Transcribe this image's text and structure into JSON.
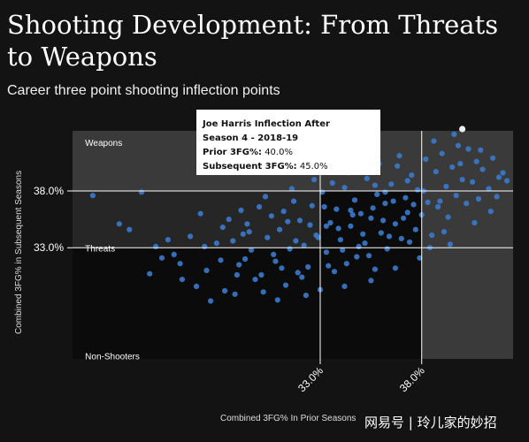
{
  "title": "Shooting Development: From Threats to Weapons",
  "subtitle": "Career three point shooting inflection points",
  "watermark": "网易号 | 玲儿家的妙招",
  "colors": {
    "background": "#131313",
    "point": "#3a78c9",
    "highlight": "#e8eef8",
    "zone_top": "#3a3a3a",
    "zone_mid": "#262626",
    "zone_inner": "#0b0b0b"
  },
  "chart_data": {
    "type": "scatter",
    "xlabel": "Combined 3FG% In Prior Seasons",
    "ylabel": "Combined 3FG% in Subsequent Seasons",
    "xlim": [
      20.8,
      42.5
    ],
    "ylim": [
      23.2,
      43.3
    ],
    "x_ticks": [
      {
        "value": 33.0,
        "label": "33.0%"
      },
      {
        "value": 38.0,
        "label": "38.0%"
      }
    ],
    "y_ticks": [
      {
        "value": 38.0,
        "label": "38.0%"
      },
      {
        "value": 33.0,
        "label": "33.0%"
      }
    ],
    "zones": [
      {
        "label": "Weapons",
        "x": 21.2,
        "y": 42.6
      },
      {
        "label": "Threats",
        "x": 21.2,
        "y": 33.3
      },
      {
        "label": "Non-Shooters",
        "x": 21.2,
        "y": 23.8
      }
    ],
    "tooltip": {
      "title_line1": "Joe Harris Inflection After",
      "title_line2": "Season 4 - 2018-19",
      "prior_label": "Prior 3FG%:",
      "prior_value": "40.0%",
      "subsequent_label": "Subsequent 3FG%:",
      "subsequent_value": "45.0%"
    },
    "highlight_point": {
      "x": 40.0,
      "y": 45.0
    },
    "points": [
      [
        21.8,
        37.6
      ],
      [
        23.1,
        35.1
      ],
      [
        23.6,
        34.6
      ],
      [
        24.2,
        37.9
      ],
      [
        24.6,
        30.7
      ],
      [
        25.2,
        32.1
      ],
      [
        25.5,
        33.7
      ],
      [
        25.8,
        32.4
      ],
      [
        26.2,
        30.2
      ],
      [
        26.9,
        29.6
      ],
      [
        27.3,
        33.1
      ],
      [
        27.6,
        28.3
      ],
      [
        27.9,
        33.4
      ],
      [
        28.1,
        31.9
      ],
      [
        28.3,
        29.2
      ],
      [
        28.5,
        35.5
      ],
      [
        28.7,
        33.6
      ],
      [
        28.9,
        30.6
      ],
      [
        29.0,
        31.5
      ],
      [
        29.2,
        34.2
      ],
      [
        29.4,
        35.1
      ],
      [
        29.6,
        32.8
      ],
      [
        29.8,
        30.2
      ],
      [
        30.0,
        36.6
      ],
      [
        30.2,
        29.1
      ],
      [
        30.4,
        33.9
      ],
      [
        30.6,
        35.8
      ],
      [
        30.8,
        31.8
      ],
      [
        31.0,
        34.6
      ],
      [
        31.2,
        36.2
      ],
      [
        31.3,
        29.7
      ],
      [
        31.5,
        32.9
      ],
      [
        31.7,
        37.1
      ],
      [
        31.9,
        30.8
      ],
      [
        32.0,
        35.4
      ],
      [
        32.2,
        33.2
      ],
      [
        32.4,
        31.3
      ],
      [
        32.6,
        36.7
      ],
      [
        32.8,
        34.1
      ],
      [
        33.0,
        29.3
      ],
      [
        33.1,
        37.9
      ],
      [
        33.3,
        32.6
      ],
      [
        33.5,
        35.2
      ],
      [
        33.7,
        30.9
      ],
      [
        33.8,
        36.4
      ],
      [
        34.0,
        33.7
      ],
      [
        34.2,
        38.3
      ],
      [
        34.3,
        31.6
      ],
      [
        34.5,
        34.9
      ],
      [
        34.7,
        37.2
      ],
      [
        34.8,
        32.2
      ],
      [
        35.0,
        36.0
      ],
      [
        35.2,
        33.4
      ],
      [
        35.3,
        39.1
      ],
      [
        35.5,
        35.6
      ],
      [
        35.7,
        31.1
      ],
      [
        35.8,
        37.7
      ],
      [
        36.0,
        34.3
      ],
      [
        36.2,
        36.9
      ],
      [
        36.3,
        32.9
      ],
      [
        36.5,
        38.6
      ],
      [
        36.7,
        35.1
      ],
      [
        36.8,
        40.2
      ],
      [
        37.0,
        33.8
      ],
      [
        37.2,
        37.4
      ],
      [
        37.3,
        36.1
      ],
      [
        37.5,
        39.4
      ],
      [
        37.7,
        34.6
      ],
      [
        37.8,
        38.1
      ],
      [
        38.0,
        35.9
      ],
      [
        38.2,
        40.8
      ],
      [
        38.3,
        37.0
      ],
      [
        38.5,
        34.1
      ],
      [
        38.7,
        39.7
      ],
      [
        38.8,
        36.6
      ],
      [
        39.0,
        41.3
      ],
      [
        39.2,
        38.4
      ],
      [
        39.3,
        35.7
      ],
      [
        39.5,
        40.1
      ],
      [
        39.7,
        37.6
      ],
      [
        39.8,
        42.0
      ],
      [
        40.0,
        39.0
      ],
      [
        40.2,
        36.9
      ],
      [
        40.3,
        41.7
      ],
      [
        40.5,
        38.8
      ],
      [
        40.7,
        40.6
      ],
      [
        40.8,
        37.3
      ],
      [
        41.0,
        39.9
      ],
      [
        41.3,
        38.2
      ],
      [
        41.5,
        40.9
      ],
      [
        41.7,
        37.5
      ],
      [
        42.0,
        39.6
      ],
      [
        42.2,
        38.9
      ],
      [
        29.5,
        34.4
      ],
      [
        30.7,
        32.4
      ],
      [
        31.8,
        33.6
      ],
      [
        32.5,
        35.0
      ],
      [
        33.2,
        36.6
      ],
      [
        33.9,
        34.7
      ],
      [
        34.6,
        35.9
      ],
      [
        35.1,
        34.2
      ],
      [
        35.6,
        36.5
      ],
      [
        36.1,
        35.4
      ],
      [
        36.6,
        37.1
      ],
      [
        37.1,
        35.6
      ],
      [
        37.6,
        36.8
      ],
      [
        31.1,
        31.2
      ],
      [
        32.1,
        30.4
      ],
      [
        33.4,
        31.4
      ],
      [
        34.1,
        32.8
      ],
      [
        34.9,
        33.1
      ],
      [
        35.4,
        32.3
      ],
      [
        36.4,
        34.0
      ],
      [
        37.4,
        33.5
      ],
      [
        38.4,
        33.0
      ],
      [
        39.1,
        34.4
      ],
      [
        28.2,
        34.8
      ],
      [
        29.1,
        36.3
      ],
      [
        30.3,
        37.5
      ],
      [
        31.6,
        38.2
      ],
      [
        32.7,
        39.0
      ],
      [
        33.6,
        38.7
      ],
      [
        34.4,
        39.6
      ],
      [
        35.9,
        40.4
      ],
      [
        36.9,
        41.1
      ],
      [
        38.6,
        42.4
      ],
      [
        39.6,
        43.0
      ],
      [
        27.4,
        31.0
      ],
      [
        26.6,
        34.0
      ],
      [
        28.8,
        28.9
      ],
      [
        30.9,
        28.4
      ],
      [
        32.3,
        28.8
      ],
      [
        34.2,
        29.6
      ],
      [
        35.5,
        30.1
      ],
      [
        36.7,
        31.2
      ],
      [
        37.9,
        32.1
      ],
      [
        39.4,
        33.3
      ],
      [
        40.6,
        35.2
      ],
      [
        41.4,
        36.2
      ],
      [
        24.9,
        33.1
      ],
      [
        26.1,
        31.6
      ],
      [
        27.1,
        36.0
      ],
      [
        29.3,
        32.0
      ],
      [
        30.1,
        30.6
      ],
      [
        31.4,
        35.3
      ],
      [
        32.9,
        33.9
      ],
      [
        33.3,
        34.9
      ],
      [
        34.5,
        36.3
      ],
      [
        35.7,
        38.5
      ],
      [
        36.2,
        37.9
      ],
      [
        37.3,
        38.9
      ],
      [
        38.1,
        38.0
      ],
      [
        38.9,
        37.1
      ],
      [
        39.9,
        40.4
      ],
      [
        40.9,
        41.6
      ],
      [
        41.8,
        39.2
      ]
    ]
  }
}
